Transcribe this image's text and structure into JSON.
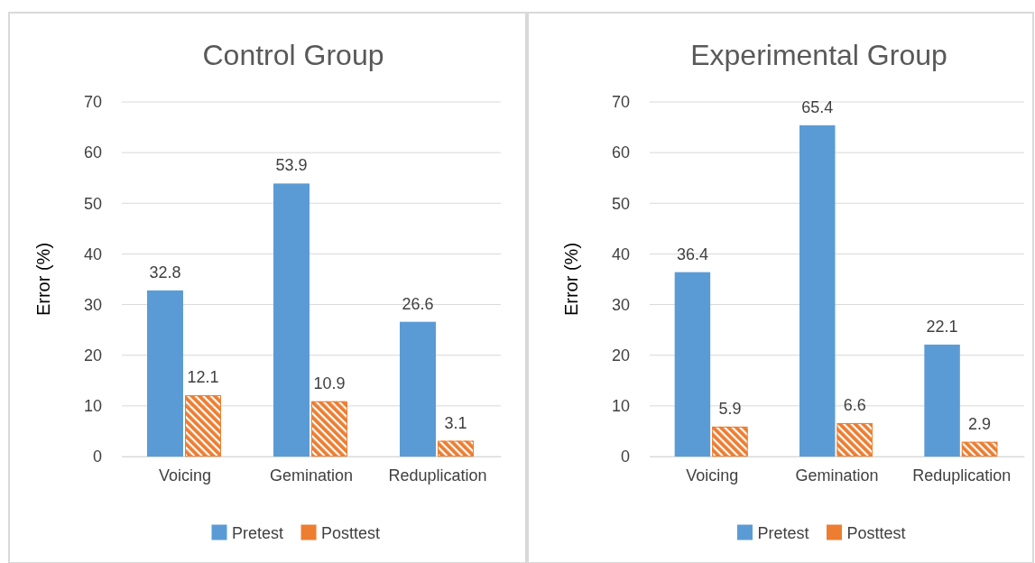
{
  "chart_data": [
    {
      "type": "bar",
      "title": "Control Group",
      "ylabel": "Error (%)",
      "categories": [
        "Voicing",
        "Gemination",
        "Reduplication"
      ],
      "series": [
        {
          "name": "Pretest",
          "color": "#5b9bd5",
          "values": [
            32.8,
            53.9,
            26.6
          ]
        },
        {
          "name": "Posttest",
          "color": "#ed7d31",
          "values": [
            12.1,
            10.9,
            3.1
          ]
        }
      ],
      "ylim": [
        0,
        70
      ],
      "yticks": [
        0,
        10,
        20,
        30,
        40,
        50,
        60,
        70
      ],
      "grid": "y",
      "legend": "bottom",
      "data_labels": true
    },
    {
      "type": "bar",
      "title": "Experimental Group",
      "ylabel": "Error (%)",
      "categories": [
        "Voicing",
        "Gemination",
        "Reduplication"
      ],
      "series": [
        {
          "name": "Pretest",
          "color": "#5b9bd5",
          "values": [
            36.4,
            65.4,
            22.1
          ]
        },
        {
          "name": "Posttest",
          "color": "#ed7d31",
          "values": [
            5.9,
            6.6,
            2.9
          ]
        }
      ],
      "ylim": [
        0,
        70
      ],
      "yticks": [
        0,
        10,
        20,
        30,
        40,
        50,
        60,
        70
      ],
      "grid": "y",
      "legend": "bottom",
      "data_labels": true
    }
  ]
}
